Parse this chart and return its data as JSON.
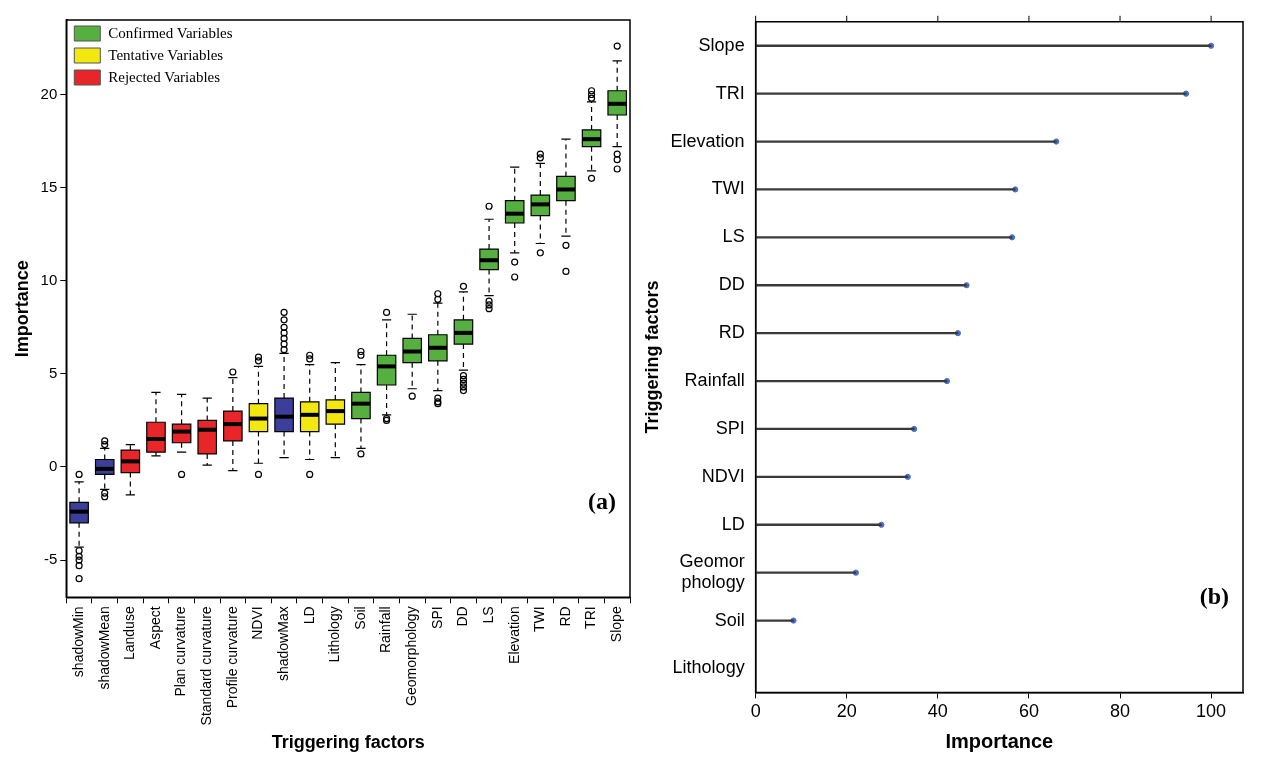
{
  "chart_data": [
    {
      "type": "box",
      "xlabel": "Triggering factors",
      "ylabel": "Importance",
      "legend": "top left",
      "categories": [
        "shadowMin",
        "shadowMean",
        "Landuse",
        "Aspect",
        "Plan curvature",
        "Standard curvature",
        "Profile curvature",
        "NDVI",
        "shadowMax",
        "LD",
        "Lithology",
        "Soil",
        "Rainfall",
        "Geomorphology",
        "SPI",
        "DD",
        "LS",
        "Elevation",
        "TWI",
        "RD",
        "TRI",
        "Slope"
      ],
      "ylim": [
        -7,
        24
      ],
      "yticks": [
        -5,
        0,
        5,
        10,
        15,
        20
      ],
      "series": [
        {
          "color": "#3b3f9a",
          "boxes": [
            {
              "low": -4.3,
              "q1": -3.0,
              "median": -2.4,
              "q3": -1.9,
              "high": -0.8,
              "outliers": [
                -0.4,
                -4.5,
                -4.8,
                -5.0,
                -5.3,
                -6.0
              ]
            },
            {
              "low": -1.2,
              "q1": -0.4,
              "median": -0.1,
              "q3": 0.4,
              "high": 1.0,
              "outliers": [
                1.2,
                1.4,
                -1.4,
                -1.6
              ]
            },
            null,
            null,
            null,
            null,
            null,
            null,
            {
              "low": 0.5,
              "q1": 1.9,
              "median": 2.7,
              "q3": 3.7,
              "high": 6.1,
              "outliers": [
                6.3,
                6.6,
                6.9,
                7.2,
                7.5,
                7.9,
                8.3
              ]
            },
            null,
            null,
            null,
            null,
            null,
            null,
            null,
            null,
            null,
            null,
            null,
            null,
            null
          ]
        },
        {
          "name": "Confirmed Variables",
          "color": "#55b03f",
          "boxes": [
            null,
            null,
            null,
            null,
            null,
            null,
            null,
            null,
            null,
            null,
            null,
            {
              "low": 1.0,
              "q1": 2.6,
              "median": 3.4,
              "q3": 4.0,
              "high": 5.5,
              "outliers": [
                6.0,
                6.2,
                0.7
              ]
            },
            {
              "low": 2.8,
              "q1": 4.4,
              "median": 5.4,
              "q3": 6.0,
              "high": 7.9,
              "outliers": [
                8.3,
                2.6,
                2.5
              ]
            },
            {
              "low": 4.2,
              "q1": 5.6,
              "median": 6.2,
              "q3": 6.9,
              "high": 8.2,
              "outliers": [
                3.8
              ]
            },
            {
              "low": 4.1,
              "q1": 5.7,
              "median": 6.4,
              "q3": 7.1,
              "high": 8.8,
              "outliers": [
                9.0,
                9.3,
                3.7,
                3.5,
                3.4
              ]
            },
            {
              "low": 5.2,
              "q1": 6.6,
              "median": 7.2,
              "q3": 7.9,
              "high": 9.4,
              "outliers": [
                9.7,
                4.9,
                4.7,
                4.5,
                4.3,
                4.1
              ]
            },
            {
              "low": 9.2,
              "q1": 10.6,
              "median": 11.1,
              "q3": 11.7,
              "high": 13.3,
              "outliers": [
                14.0,
                8.9,
                8.7,
                8.5
              ]
            },
            {
              "low": 11.5,
              "q1": 13.1,
              "median": 13.6,
              "q3": 14.3,
              "high": 16.1,
              "outliers": [
                11.0,
                10.2
              ]
            },
            {
              "low": 12.0,
              "q1": 13.5,
              "median": 14.1,
              "q3": 14.6,
              "high": 16.3,
              "outliers": [
                16.6,
                16.8,
                11.5
              ]
            },
            {
              "low": 12.4,
              "q1": 14.3,
              "median": 14.9,
              "q3": 15.6,
              "high": 17.6,
              "outliers": [
                11.9,
                10.5
              ]
            },
            {
              "low": 15.9,
              "q1": 17.2,
              "median": 17.6,
              "q3": 18.1,
              "high": 19.6,
              "outliers": [
                19.8,
                20.0,
                20.2,
                15.5
              ]
            },
            {
              "low": 17.2,
              "q1": 18.9,
              "median": 19.5,
              "q3": 20.2,
              "high": 21.8,
              "outliers": [
                22.6,
                16.8,
                16.5,
                16.0
              ]
            }
          ]
        },
        {
          "name": "Tentative Variables",
          "color": "#f2e70f",
          "boxes": [
            null,
            null,
            null,
            null,
            null,
            null,
            null,
            {
              "low": 0.2,
              "q1": 1.9,
              "median": 2.6,
              "q3": 3.4,
              "high": 5.4,
              "outliers": [
                5.7,
                5.9,
                -0.4
              ]
            },
            null,
            {
              "low": 0.4,
              "q1": 1.9,
              "median": 2.8,
              "q3": 3.5,
              "high": 5.5,
              "outliers": [
                5.8,
                6.0,
                -0.4
              ]
            },
            {
              "low": 0.5,
              "q1": 2.3,
              "median": 3.0,
              "q3": 3.6,
              "high": 5.6
            },
            null,
            null,
            null,
            null,
            null,
            null,
            null,
            null,
            null,
            null,
            null
          ]
        },
        {
          "name": "Rejected Variables",
          "color": "#e8262a",
          "boxes": [
            null,
            null,
            {
              "low": -1.5,
              "q1": -0.3,
              "median": 0.3,
              "q3": 0.9,
              "high": 1.2
            },
            {
              "low": 0.6,
              "q1": 0.8,
              "median": 1.5,
              "q3": 2.4,
              "high": 4.0
            },
            {
              "low": 0.8,
              "q1": 1.3,
              "median": 1.9,
              "q3": 2.3,
              "high": 3.9,
              "outliers": [
                -0.4
              ]
            },
            {
              "low": 0.1,
              "q1": 0.7,
              "median": 2.0,
              "q3": 2.5,
              "high": 3.7
            },
            {
              "low": -0.2,
              "q1": 1.4,
              "median": 2.3,
              "q3": 3.0,
              "high": 4.8,
              "outliers": [
                5.1
              ]
            },
            null,
            null,
            null,
            null,
            null,
            null,
            null,
            null,
            null,
            null,
            null,
            null,
            null,
            null,
            null
          ]
        }
      ],
      "annotations": [
        "(a)"
      ]
    },
    {
      "type": "lollipop",
      "orientation": "horizontal",
      "xlabel": "Importance",
      "ylabel": "Triggering factors",
      "marker": "circle",
      "categories": [
        "Slope",
        "TRI",
        "Elevation",
        "TWI",
        "LS",
        "DD",
        "RD",
        "Rainfall",
        "SPI",
        "NDVI",
        "LD",
        "Geomor\nphology",
        "Soil",
        "Lithology"
      ],
      "xlim": [
        0,
        107
      ],
      "xticks": [
        0,
        20,
        40,
        60,
        80,
        100
      ],
      "series": [
        {
          "color": "#4a6fc4",
          "values": [
            100,
            94.5,
            66,
            57,
            56.3,
            46.3,
            44.4,
            42,
            34.8,
            33.4,
            27.6,
            22,
            8.3,
            null
          ]
        }
      ],
      "annotations": [
        "(b)"
      ]
    }
  ]
}
